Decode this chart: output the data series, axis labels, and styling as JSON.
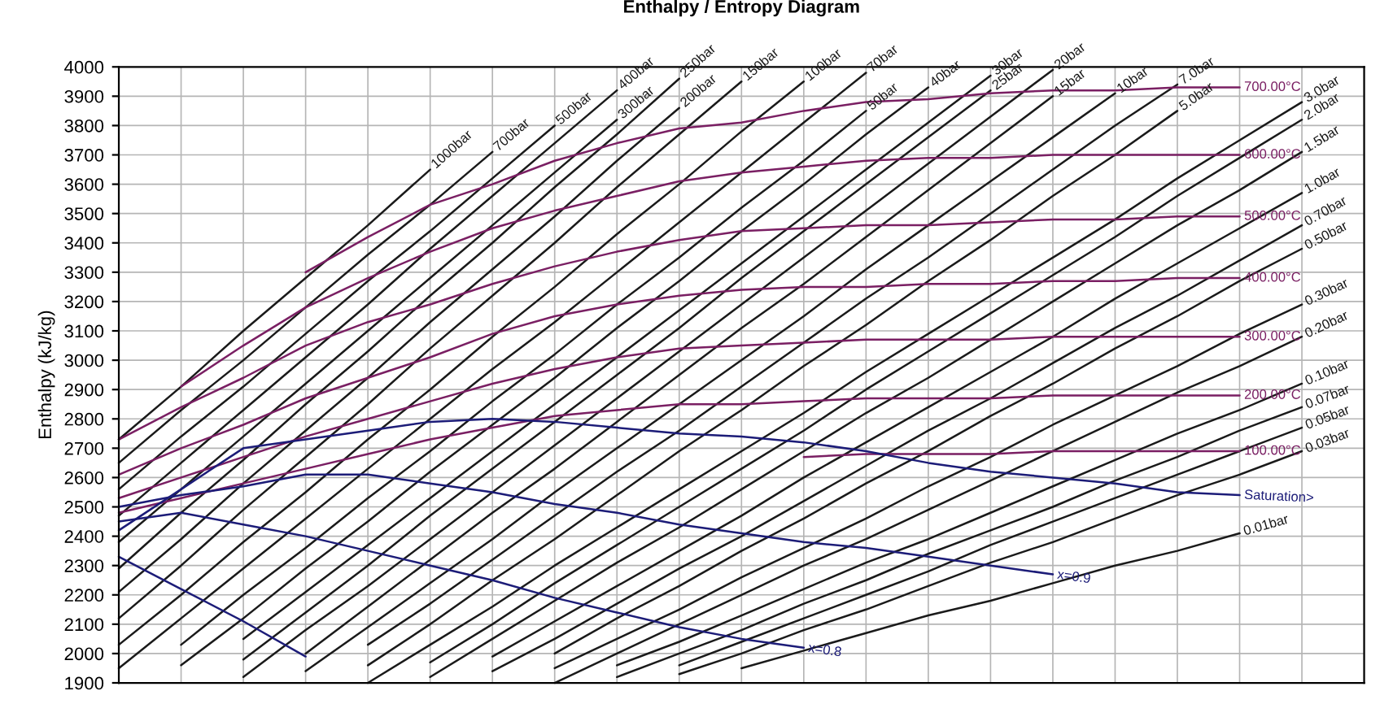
{
  "chart_data": {
    "type": "line",
    "title": "Enthalpy / Entropy Diagram",
    "ylabel": "Enthalpy (kJ/kg)",
    "categories": [
      null,
      null,
      null,
      null,
      null,
      null,
      null,
      null,
      null,
      null,
      null,
      null,
      null,
      null,
      null,
      null,
      null,
      null,
      null,
      null,
      null
    ],
    "ylim": [
      1900,
      4000
    ],
    "yticks": [
      1900,
      2000,
      2100,
      2200,
      2300,
      2400,
      2500,
      2600,
      2700,
      2800,
      2900,
      3000,
      3100,
      3200,
      3300,
      3400,
      3500,
      3600,
      3700,
      3800,
      3900,
      4000
    ],
    "tick_labels": "y",
    "grid": true,
    "legend": false,
    "marker": "none",
    "line_style": "solid",
    "series": [
      {
        "name": "1000bar",
        "color": "#1a1a1a",
        "values": [
          2730,
          2910,
          3100,
          3280,
          3460,
          3650,
          null,
          null,
          null,
          null,
          null,
          null,
          null,
          null,
          null,
          null,
          null,
          null,
          null,
          null,
          null
        ]
      },
      {
        "name": "700bar",
        "color": "#1a1a1a",
        "values": [
          2650,
          2830,
          3000,
          3180,
          3360,
          3530,
          3710,
          null,
          null,
          null,
          null,
          null,
          null,
          null,
          null,
          null,
          null,
          null,
          null,
          null,
          null
        ]
      },
      {
        "name": "500bar",
        "color": "#1a1a1a",
        "values": [
          2560,
          2740,
          2910,
          3090,
          3270,
          3440,
          3620,
          3800,
          null,
          null,
          null,
          null,
          null,
          null,
          null,
          null,
          null,
          null,
          null,
          null,
          null
        ]
      },
      {
        "name": "400bar",
        "color": "#1a1a1a",
        "values": [
          2470,
          2650,
          2830,
          3010,
          3190,
          3380,
          3560,
          3740,
          3920,
          null,
          null,
          null,
          null,
          null,
          null,
          null,
          null,
          null,
          null,
          null,
          null
        ]
      },
      {
        "name": "300bar",
        "color": "#1a1a1a",
        "values": [
          2380,
          2560,
          2740,
          2920,
          3100,
          3280,
          3460,
          3640,
          3820,
          null,
          null,
          null,
          null,
          null,
          null,
          null,
          null,
          null,
          null,
          null,
          null
        ]
      },
      {
        "name": "250bar",
        "color": "#1a1a1a",
        "values": [
          2290,
          2480,
          2660,
          2850,
          3030,
          3220,
          3400,
          3590,
          3770,
          3960,
          null,
          null,
          null,
          null,
          null,
          null,
          null,
          null,
          null,
          null,
          null
        ]
      },
      {
        "name": "200bar",
        "color": "#1a1a1a",
        "values": [
          2210,
          2390,
          2580,
          2760,
          2940,
          3130,
          3310,
          3490,
          3680,
          3860,
          null,
          null,
          null,
          null,
          null,
          null,
          null,
          null,
          null,
          null,
          null
        ]
      },
      {
        "name": "150bar",
        "color": "#1a1a1a",
        "values": [
          2120,
          2300,
          2490,
          2670,
          2850,
          3040,
          3220,
          3400,
          3590,
          3770,
          3950,
          null,
          null,
          null,
          null,
          null,
          null,
          null,
          null,
          null,
          null
        ]
      },
      {
        "name": "100bar",
        "color": "#1a1a1a",
        "values": [
          2030,
          2200,
          2380,
          2550,
          2730,
          2900,
          3080,
          3250,
          3430,
          3600,
          3780,
          3950,
          null,
          null,
          null,
          null,
          null,
          null,
          null,
          null,
          null
        ]
      },
      {
        "name": "70bar",
        "color": "#1a1a1a",
        "values": [
          1950,
          2120,
          2290,
          2460,
          2630,
          2800,
          2970,
          3130,
          3300,
          3470,
          3640,
          3810,
          3980,
          null,
          null,
          null,
          null,
          null,
          null,
          null,
          null
        ]
      },
      {
        "name": "50bar",
        "color": "#1a1a1a",
        "values": [
          null,
          2030,
          2200,
          2360,
          2530,
          2690,
          2860,
          3020,
          3190,
          3350,
          3520,
          3680,
          3850,
          null,
          null,
          null,
          null,
          null,
          null,
          null,
          null
        ]
      },
      {
        "name": "40bar",
        "color": "#1a1a1a",
        "values": [
          null,
          1960,
          2120,
          2290,
          2450,
          2620,
          2780,
          2940,
          3110,
          3270,
          3440,
          3600,
          3770,
          3930,
          null,
          null,
          null,
          null,
          null,
          null,
          null
        ]
      },
      {
        "name": "30bar",
        "color": "#1a1a1a",
        "values": [
          null,
          null,
          2050,
          2210,
          2370,
          2530,
          2690,
          2850,
          3010,
          3170,
          3330,
          3490,
          3650,
          3810,
          3970,
          null,
          null,
          null,
          null,
          null,
          null
        ]
      },
      {
        "name": "25bar",
        "color": "#1a1a1a",
        "values": [
          null,
          null,
          1980,
          2140,
          2300,
          2470,
          2630,
          2790,
          2950,
          3110,
          3280,
          3440,
          3600,
          3760,
          3920,
          null,
          null,
          null,
          null,
          null,
          null
        ]
      },
      {
        "name": "20bar",
        "color": "#1a1a1a",
        "values": [
          null,
          null,
          1920,
          2080,
          2230,
          2390,
          2550,
          2710,
          2870,
          3030,
          3190,
          3350,
          3510,
          3670,
          3830,
          3990,
          null,
          null,
          null,
          null,
          null
        ]
      },
      {
        "name": "15bar",
        "color": "#1a1a1a",
        "values": [
          null,
          null,
          null,
          2000,
          2160,
          2320,
          2480,
          2630,
          2790,
          2950,
          3110,
          3260,
          3420,
          3580,
          3740,
          3900,
          null,
          null,
          null,
          null,
          null
        ]
      },
      {
        "name": "10bar",
        "color": "#1a1a1a",
        "values": [
          null,
          null,
          null,
          1940,
          2090,
          2240,
          2390,
          2550,
          2700,
          2850,
          3000,
          3150,
          3310,
          3460,
          3610,
          3760,
          3910,
          null,
          null,
          null,
          null
        ]
      },
      {
        "name": "7.0bar",
        "color": "#1a1a1a",
        "values": [
          null,
          null,
          null,
          null,
          2030,
          2170,
          2320,
          2470,
          2620,
          2760,
          2910,
          3060,
          3210,
          3350,
          3500,
          3650,
          3800,
          3940,
          null,
          null,
          null
        ]
      },
      {
        "name": "5.0bar",
        "color": "#1a1a1a",
        "values": [
          null,
          null,
          null,
          null,
          1960,
          2100,
          2250,
          2390,
          2540,
          2690,
          2830,
          2980,
          3120,
          3270,
          3410,
          3560,
          3700,
          3850,
          null,
          null,
          null
        ]
      },
      {
        "name": "3.0bar",
        "color": "#1a1a1a",
        "values": [
          null,
          null,
          null,
          null,
          1900,
          2030,
          2160,
          2300,
          2430,
          2560,
          2690,
          2820,
          2960,
          3090,
          3220,
          3350,
          3480,
          3620,
          3750,
          3880,
          null
        ]
      },
      {
        "name": "2.0bar",
        "color": "#1a1a1a",
        "values": [
          null,
          null,
          null,
          null,
          null,
          1970,
          2100,
          2240,
          2370,
          2500,
          2630,
          2760,
          2900,
          3030,
          3160,
          3290,
          3420,
          3560,
          3690,
          3820,
          null
        ]
      },
      {
        "name": "1.5bar",
        "color": "#1a1a1a",
        "values": [
          null,
          null,
          null,
          null,
          null,
          1920,
          2050,
          2180,
          2310,
          2430,
          2560,
          2690,
          2820,
          2940,
          3070,
          3200,
          3330,
          3460,
          3580,
          3710,
          null
        ]
      },
      {
        "name": "1.0bar",
        "color": "#1a1a1a",
        "values": [
          null,
          null,
          null,
          null,
          null,
          null,
          1990,
          2110,
          2230,
          2350,
          2470,
          2600,
          2720,
          2840,
          2960,
          3080,
          3210,
          3330,
          3450,
          3570,
          null
        ]
      },
      {
        "name": "0.70bar",
        "color": "#1a1a1a",
        "values": [
          null,
          null,
          null,
          null,
          null,
          null,
          1940,
          2050,
          2170,
          2290,
          2400,
          2520,
          2640,
          2760,
          2870,
          2990,
          3110,
          3220,
          3340,
          3460,
          null
        ]
      },
      {
        "name": "0.50bar",
        "color": "#1a1a1a",
        "values": [
          null,
          null,
          null,
          null,
          null,
          null,
          null,
          2000,
          2120,
          2230,
          2350,
          2460,
          2580,
          2690,
          2810,
          2920,
          3040,
          3150,
          3270,
          3380,
          null
        ]
      },
      {
        "name": "0.30bar",
        "color": "#1a1a1a",
        "values": [
          null,
          null,
          null,
          null,
          null,
          null,
          null,
          1950,
          2050,
          2150,
          2260,
          2360,
          2460,
          2570,
          2670,
          2780,
          2880,
          2980,
          3090,
          3190,
          null
        ]
      },
      {
        "name": "0.20bar",
        "color": "#1a1a1a",
        "values": [
          null,
          null,
          null,
          null,
          null,
          null,
          null,
          1900,
          2000,
          2100,
          2200,
          2300,
          2390,
          2490,
          2590,
          2690,
          2790,
          2890,
          2980,
          3080,
          null
        ]
      },
      {
        "name": "0.10bar",
        "color": "#1a1a1a",
        "values": [
          null,
          null,
          null,
          null,
          null,
          null,
          null,
          null,
          1960,
          2040,
          2130,
          2220,
          2310,
          2390,
          2480,
          2570,
          2660,
          2750,
          2830,
          2920,
          null
        ]
      },
      {
        "name": "0.07bar",
        "color": "#1a1a1a",
        "values": [
          null,
          null,
          null,
          null,
          null,
          null,
          null,
          null,
          1920,
          2000,
          2080,
          2170,
          2250,
          2340,
          2420,
          2500,
          2590,
          2670,
          2760,
          2840,
          null
        ]
      },
      {
        "name": "0.05bar",
        "color": "#1a1a1a",
        "values": [
          null,
          null,
          null,
          null,
          null,
          null,
          null,
          null,
          null,
          1960,
          2040,
          2120,
          2200,
          2280,
          2370,
          2450,
          2530,
          2610,
          2690,
          2770,
          null
        ]
      },
      {
        "name": "0.03bar",
        "color": "#1a1a1a",
        "values": [
          null,
          null,
          null,
          null,
          null,
          null,
          null,
          null,
          null,
          1930,
          2000,
          2080,
          2150,
          2230,
          2310,
          2380,
          2460,
          2540,
          2610,
          2690,
          null
        ]
      },
      {
        "name": "0.01bar",
        "color": "#1a1a1a",
        "values": [
          null,
          null,
          null,
          null,
          null,
          null,
          null,
          null,
          null,
          null,
          1950,
          2010,
          2070,
          2130,
          2180,
          2240,
          2300,
          2350,
          2410,
          null,
          null
        ]
      },
      {
        "name": "700.00°C",
        "color": "#7a1f63",
        "values": [
          null,
          null,
          null,
          3300,
          3420,
          3530,
          3600,
          3680,
          3740,
          3790,
          3810,
          3850,
          3880,
          3890,
          3910,
          3920,
          3920,
          3930,
          3930,
          null,
          null
        ]
      },
      {
        "name": "600.00°C",
        "color": "#7a1f63",
        "values": [
          null,
          2910,
          3050,
          3180,
          3280,
          3370,
          3450,
          3510,
          3560,
          3610,
          3640,
          3660,
          3680,
          3690,
          3690,
          3700,
          3700,
          3700,
          3700,
          null,
          null
        ]
      },
      {
        "name": "500.00°C",
        "color": "#7a1f63",
        "values": [
          2730,
          2840,
          2940,
          3050,
          3130,
          3190,
          3260,
          3320,
          3370,
          3410,
          3440,
          3450,
          3460,
          3460,
          3470,
          3480,
          3480,
          3490,
          3490,
          null,
          null
        ]
      },
      {
        "name": "400.00°C",
        "color": "#7a1f63",
        "values": [
          2610,
          2700,
          2780,
          2870,
          2940,
          3010,
          3090,
          3150,
          3190,
          3220,
          3240,
          3250,
          3250,
          3260,
          3260,
          3270,
          3270,
          3280,
          3280,
          null,
          null
        ]
      },
      {
        "name": "300.00°C",
        "color": "#7a1f63",
        "values": [
          2530,
          2600,
          2670,
          2740,
          2800,
          2860,
          2920,
          2970,
          3010,
          3040,
          3050,
          3060,
          3070,
          3070,
          3070,
          3080,
          3080,
          3080,
          3080,
          null,
          null
        ]
      },
      {
        "name": "200.00°C",
        "color": "#7a1f63",
        "values": [
          2480,
          2530,
          2580,
          2630,
          2680,
          2730,
          2770,
          2810,
          2830,
          2850,
          2850,
          2860,
          2870,
          2870,
          2870,
          2880,
          2880,
          2880,
          2880,
          null,
          null
        ]
      },
      {
        "name": "100.00°C",
        "color": "#7a1f63",
        "values": [
          null,
          null,
          null,
          null,
          null,
          null,
          null,
          null,
          null,
          null,
          null,
          2670,
          2680,
          2680,
          2680,
          2690,
          2690,
          2690,
          2690,
          null,
          null
        ]
      },
      {
        "name": "Saturation>",
        "color": "#1c1c78",
        "values": [
          2420,
          2560,
          2700,
          2730,
          2760,
          2790,
          2800,
          2790,
          2770,
          2750,
          2740,
          2720,
          2690,
          2650,
          2620,
          2600,
          2580,
          2550,
          2540,
          null,
          null
        ]
      },
      {
        "name": "x=0.9",
        "color": "#1c1c78",
        "values": [
          2500,
          2540,
          2570,
          2610,
          2610,
          2580,
          2550,
          2510,
          2480,
          2440,
          2410,
          2380,
          2360,
          2330,
          2300,
          2270,
          null,
          null,
          null,
          null,
          null
        ]
      },
      {
        "name": "x=0.8",
        "color": "#1c1c78",
        "values": [
          2450,
          2480,
          2440,
          2400,
          2350,
          2300,
          2250,
          2190,
          2140,
          2090,
          2050,
          2020,
          null,
          null,
          null,
          null,
          null,
          null,
          null,
          null,
          null
        ]
      },
      {
        "name": null,
        "color": "#1c1c78",
        "values": [
          2330,
          2220,
          2110,
          1990,
          null,
          null,
          null,
          null,
          null,
          null,
          null,
          null,
          null,
          null,
          null,
          null,
          null,
          null,
          null,
          null,
          null
        ]
      }
    ]
  }
}
